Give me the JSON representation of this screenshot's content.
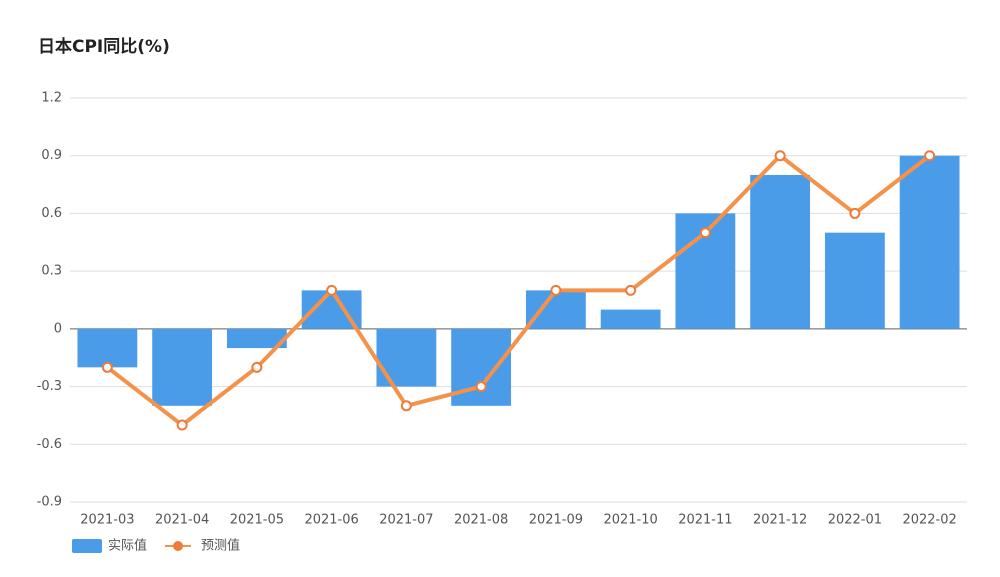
{
  "chart_data": {
    "type": "bar",
    "title": "日本CPI同比(%)",
    "categories": [
      "2021-03",
      "2021-04",
      "2021-05",
      "2021-06",
      "2021-07",
      "2021-08",
      "2021-09",
      "2021-10",
      "2021-11",
      "2021-12",
      "2022-01",
      "2022-02"
    ],
    "series": [
      {
        "name": "实际值",
        "type": "bar",
        "color": "#4a9be8",
        "values": [
          -0.2,
          -0.4,
          -0.1,
          0.2,
          -0.3,
          -0.4,
          0.2,
          0.1,
          0.6,
          0.8,
          0.5,
          0.9
        ]
      },
      {
        "name": "预测值",
        "type": "line",
        "color": "#f5924a",
        "values": [
          -0.2,
          -0.5,
          -0.2,
          0.2,
          -0.4,
          -0.3,
          0.2,
          0.2,
          0.5,
          0.9,
          0.6,
          0.9
        ]
      }
    ],
    "ylim": [
      -0.9,
      1.2
    ],
    "yticks": [
      -0.9,
      -0.6,
      -0.3,
      0,
      0.3,
      0.6,
      0.9,
      1.2
    ],
    "grid": true,
    "legend": "bottom-left"
  }
}
